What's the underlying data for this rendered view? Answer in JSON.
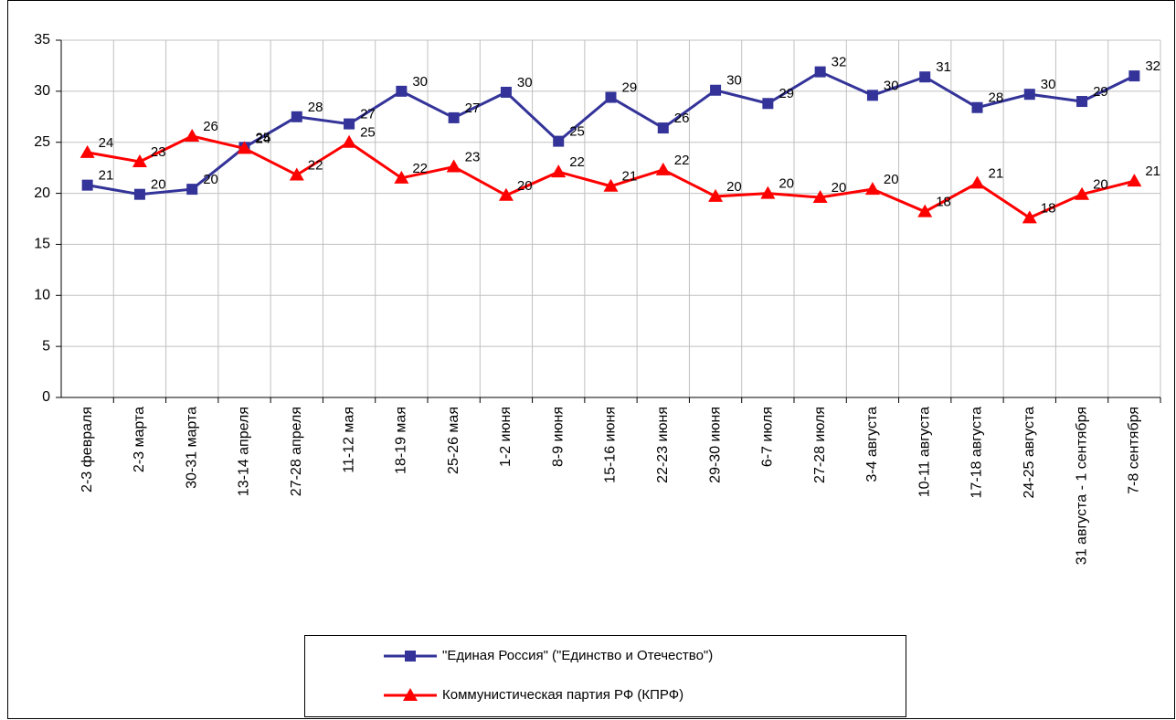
{
  "chart_data": {
    "type": "line",
    "categories": [
      "2-3 февраля",
      "2-3 марта",
      "30-31 марта",
      "13-14 апреля",
      "27-28 апреля",
      "11-12 мая",
      "18-19 мая",
      "25-26 мая",
      "1-2 июня",
      "8-9 июня",
      "15-16 июня",
      "22-23 июня",
      "29-30 июня",
      "6-7 июля",
      "27-28 июля",
      "3-4 августа",
      "10-11 августа",
      "17-18 августа",
      "24-25 августа",
      "31 августа - 1 сентября",
      "7-8 сентября"
    ],
    "series": [
      {
        "name": "\"Единая Россия\" (\"Единство и Отечество\")",
        "color": "#333399",
        "marker": "square",
        "values": [
          20.8,
          19.9,
          20.4,
          24.5,
          27.5,
          26.8,
          30.0,
          27.4,
          29.9,
          25.1,
          29.4,
          26.4,
          30.1,
          28.8,
          31.9,
          29.6,
          31.4,
          28.4,
          29.7,
          29.0,
          31.5
        ],
        "value_labels": [
          "21",
          "20",
          "20",
          "25",
          "28",
          "27",
          "30",
          "27",
          "30",
          "25",
          "29",
          "26",
          "30",
          "29",
          "32",
          "30",
          "31",
          "28",
          "30",
          "29",
          "32"
        ]
      },
      {
        "name": "Коммунистическая партия РФ (КПРФ)",
        "color": "#ff0000",
        "marker": "triangle",
        "values": [
          24.0,
          23.1,
          25.6,
          24.4,
          21.8,
          25.0,
          21.5,
          22.6,
          19.8,
          22.1,
          20.7,
          22.3,
          19.7,
          20.0,
          19.6,
          20.4,
          18.2,
          21.0,
          17.6,
          19.9,
          21.2
        ],
        "value_labels": [
          "24",
          "23",
          "26",
          "24",
          "22",
          "25",
          "22",
          "23",
          "20",
          "22",
          "21",
          "22",
          "20",
          "20",
          "20",
          "20",
          "18",
          "21",
          "18",
          "20",
          "21"
        ]
      }
    ],
    "ylim": [
      0,
      35
    ],
    "yticks": [
      0,
      5,
      10,
      15,
      20,
      25,
      30,
      35
    ],
    "grid": true,
    "legend": "bottom"
  }
}
